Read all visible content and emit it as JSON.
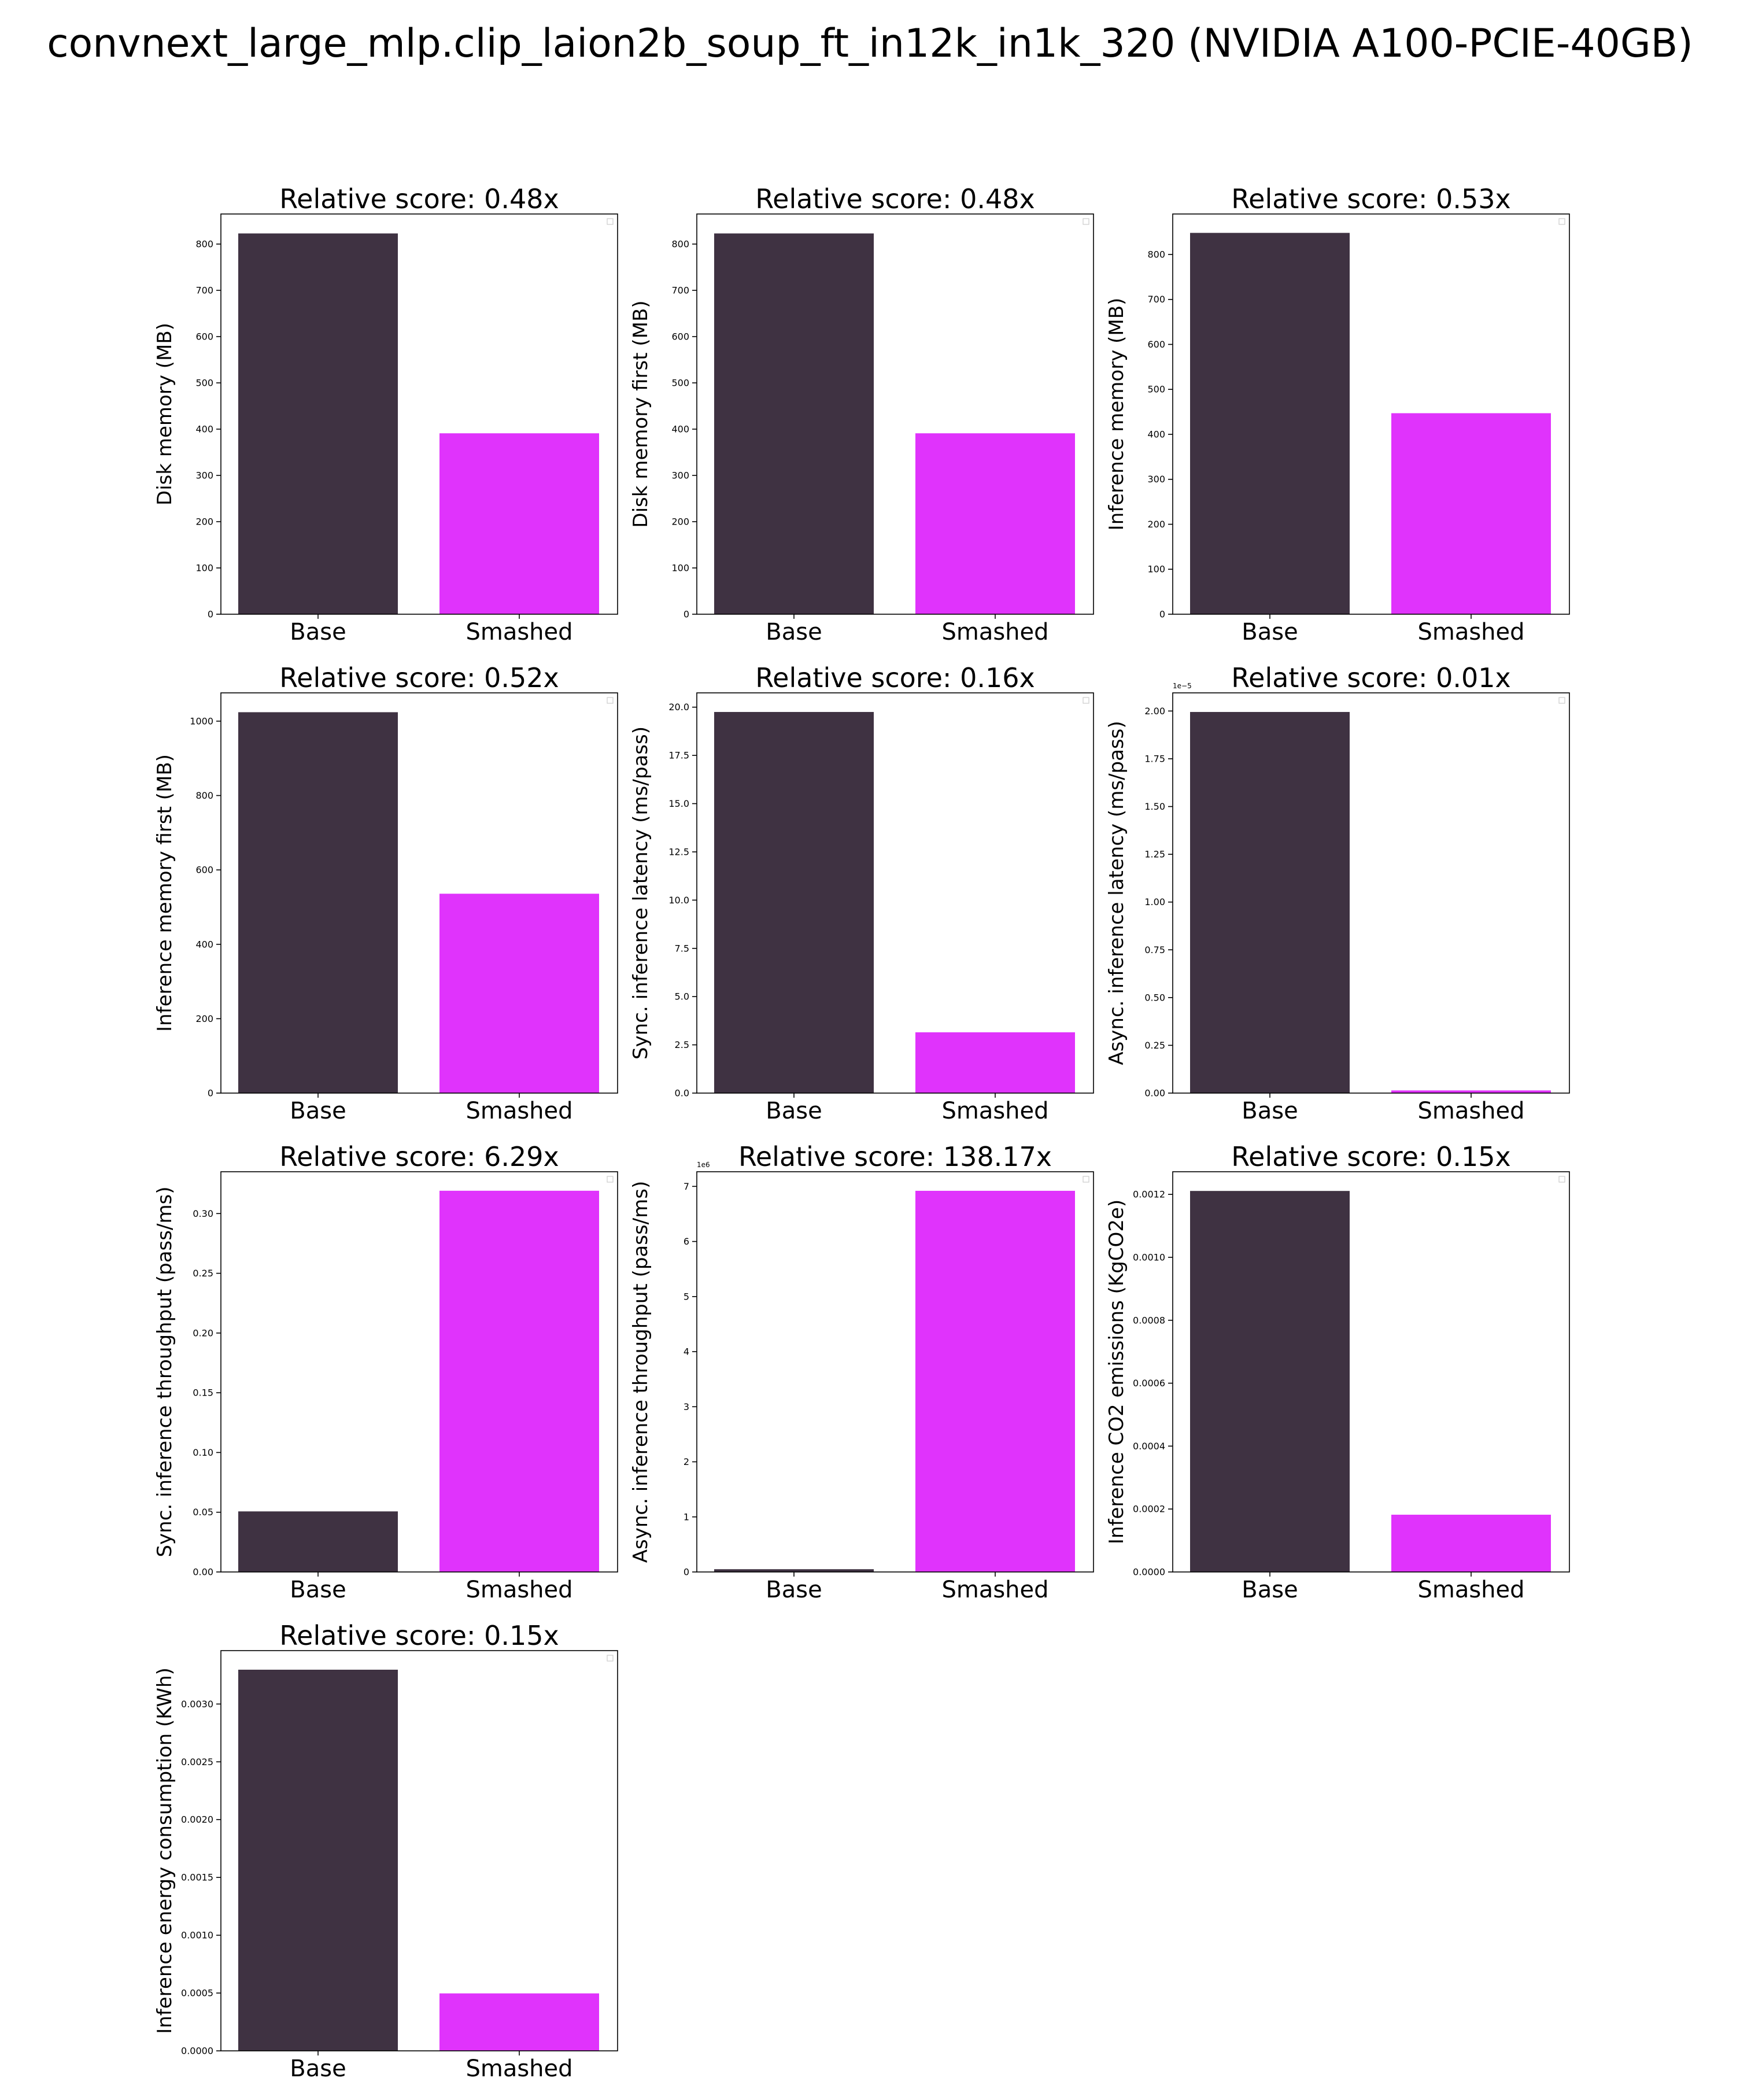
{
  "suptitle": "convnext_large_mlp.clip_laion2b_soup_ft_in12k_in1k_320 (NVIDIA A100-PCIE-40GB)",
  "colors": {
    "base": "#3f3242",
    "smashed": "#e033fc"
  },
  "chart_data": [
    {
      "type": "bar",
      "title": "Relative score: 0.48x",
      "ylabel": "Disk memory (MB)",
      "categories": [
        "Base",
        "Smashed"
      ],
      "values": [
        823,
        391
      ],
      "ylim": [
        0,
        865
      ],
      "yticks": [
        0,
        100,
        200,
        300,
        400,
        500,
        600,
        700,
        800
      ],
      "yticklabels": [
        "0",
        "100",
        "200",
        "300",
        "400",
        "500",
        "600",
        "700",
        "800"
      ],
      "offset": ""
    },
    {
      "type": "bar",
      "title": "Relative score: 0.48x",
      "ylabel": "Disk memory first (MB)",
      "categories": [
        "Base",
        "Smashed"
      ],
      "values": [
        823,
        391
      ],
      "ylim": [
        0,
        865
      ],
      "yticks": [
        0,
        100,
        200,
        300,
        400,
        500,
        600,
        700,
        800
      ],
      "yticklabels": [
        "0",
        "100",
        "200",
        "300",
        "400",
        "500",
        "600",
        "700",
        "800"
      ],
      "offset": ""
    },
    {
      "type": "bar",
      "title": "Relative score: 0.53x",
      "ylabel": "Inference memory (MB)",
      "categories": [
        "Base",
        "Smashed"
      ],
      "values": [
        848,
        447
      ],
      "ylim": [
        0,
        890
      ],
      "yticks": [
        0,
        100,
        200,
        300,
        400,
        500,
        600,
        700,
        800
      ],
      "yticklabels": [
        "0",
        "100",
        "200",
        "300",
        "400",
        "500",
        "600",
        "700",
        "800"
      ],
      "offset": ""
    },
    {
      "type": "bar",
      "title": "Relative score: 0.52x",
      "ylabel": "Inference memory first (MB)",
      "categories": [
        "Base",
        "Smashed"
      ],
      "values": [
        1024,
        536
      ],
      "ylim": [
        0,
        1076
      ],
      "yticks": [
        0,
        200,
        400,
        600,
        800,
        1000
      ],
      "yticklabels": [
        "0",
        "200",
        "400",
        "600",
        "800",
        "1000"
      ],
      "offset": ""
    },
    {
      "type": "bar",
      "title": "Relative score: 0.16x",
      "ylabel": "Sync. inference latency (ms/pass)",
      "categories": [
        "Base",
        "Smashed"
      ],
      "values": [
        19.75,
        3.15
      ],
      "ylim": [
        0,
        20.74
      ],
      "yticks": [
        0,
        2.5,
        5,
        7.5,
        10,
        12.5,
        15,
        17.5,
        20
      ],
      "yticklabels": [
        "0.0",
        "2.5",
        "5.0",
        "7.5",
        "10.0",
        "12.5",
        "15.0",
        "17.5",
        "20.0"
      ],
      "offset": ""
    },
    {
      "type": "bar",
      "title": "Relative score: 0.01x",
      "ylabel": "Async. inference latency (ms/pass)",
      "categories": [
        "Base",
        "Smashed"
      ],
      "values": [
        1.995e-05,
        1.4e-07
      ],
      "ylim": [
        0,
        2.095e-05
      ],
      "yticks": [
        0,
        2.5e-06,
        5e-06,
        7.5e-06,
        1e-05,
        1.25e-05,
        1.5e-05,
        1.75e-05,
        2e-05
      ],
      "yticklabels": [
        "0.00",
        "0.25",
        "0.50",
        "0.75",
        "1.00",
        "1.25",
        "1.50",
        "1.75",
        "2.00"
      ],
      "offset": "1e−5"
    },
    {
      "type": "bar",
      "title": "Relative score: 6.29x",
      "ylabel": "Sync. inference throughput (pass/ms)",
      "categories": [
        "Base",
        "Smashed"
      ],
      "values": [
        0.0507,
        0.3191
      ],
      "ylim": [
        0,
        0.335
      ],
      "yticks": [
        0,
        0.05,
        0.1,
        0.15,
        0.2,
        0.25,
        0.3
      ],
      "yticklabels": [
        "0.00",
        "0.05",
        "0.10",
        "0.15",
        "0.20",
        "0.25",
        "0.30"
      ],
      "offset": ""
    },
    {
      "type": "bar",
      "title": "Relative score: 138.17x",
      "ylabel": "Async. inference throughput (pass/ms)",
      "categories": [
        "Base",
        "Smashed"
      ],
      "values": [
        50100,
        6920000
      ],
      "ylim": [
        0,
        7266000
      ],
      "yticks": [
        0,
        1000000,
        2000000,
        3000000,
        4000000,
        5000000,
        6000000,
        7000000
      ],
      "yticklabels": [
        "0",
        "1",
        "2",
        "3",
        "4",
        "5",
        "6",
        "7"
      ],
      "offset": "1e6"
    },
    {
      "type": "bar",
      "title": "Relative score: 0.15x",
      "ylabel": "Inference CO2 emissions (KgCO2e)",
      "categories": [
        "Base",
        "Smashed"
      ],
      "values": [
        0.001211,
        0.000182
      ],
      "ylim": [
        0,
        0.001272
      ],
      "yticks": [
        0,
        0.0002,
        0.0004,
        0.0006,
        0.0008,
        0.001,
        0.0012
      ],
      "yticklabels": [
        "0.0000",
        "0.0002",
        "0.0004",
        "0.0006",
        "0.0008",
        "0.0010",
        "0.0012"
      ],
      "offset": ""
    },
    {
      "type": "bar",
      "title": "Relative score: 0.15x",
      "ylabel": "Inference energy consumption (KWh)",
      "categories": [
        "Base",
        "Smashed"
      ],
      "values": [
        0.003297,
        0.000497
      ],
      "ylim": [
        0,
        0.003462
      ],
      "yticks": [
        0,
        0.0005,
        0.001,
        0.0015,
        0.002,
        0.0025,
        0.003
      ],
      "yticklabels": [
        "0.0000",
        "0.0005",
        "0.0010",
        "0.0015",
        "0.0020",
        "0.0025",
        "0.0030"
      ],
      "offset": ""
    }
  ]
}
